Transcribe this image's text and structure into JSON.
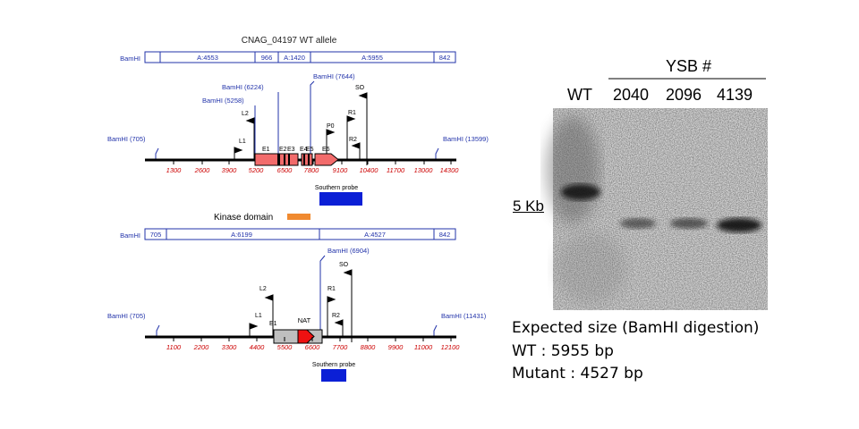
{
  "wt_map": {
    "title": "CNAG_04197 WT allele",
    "site_label": "BamHI",
    "segments": [
      "A:4553",
      "966",
      "A:1420",
      "A:5955",
      "842"
    ],
    "flank_left": "BamHI (705)",
    "flank_right": "BamHI (13599)",
    "site1": "BamHI (5258)",
    "site2": "BamHI (6224)",
    "site3": "BamHI (7644)",
    "primers": [
      "L1",
      "L2",
      "P0",
      "R1",
      "R2",
      "SO"
    ],
    "exons": [
      "E1",
      "E2",
      "E3",
      "E4",
      "E5",
      "E6"
    ],
    "scale": [
      "1300",
      "2600",
      "3900",
      "5200",
      "6500",
      "7800",
      "9100",
      "10400",
      "11700",
      "13000",
      "14300"
    ],
    "probe_label": "Southern probe"
  },
  "legend": {
    "kinase_label": "Kinase domain",
    "kinase_color": "#f08a30"
  },
  "mut_map": {
    "site_label": "BamHI",
    "segments": [
      "705",
      "A:6199",
      "A:4527",
      "842"
    ],
    "flank_left": "BamHI (705)",
    "flank_right": "BamHI (11431)",
    "site1": "BamHI (6904)",
    "primers": [
      "L1",
      "L2",
      "R1",
      "R2",
      "SO"
    ],
    "exon": "E1",
    "marker": "NAT",
    "scale": [
      "1100",
      "2200",
      "3300",
      "4400",
      "5500",
      "6600",
      "7700",
      "8800",
      "9900",
      "11000",
      "12100"
    ],
    "probe_label": "Southern probe"
  },
  "colors": {
    "gene": "#f26b6b",
    "marker": "#ee1111",
    "probe": "#0b1fd6",
    "scale": "#cc0000",
    "label": "#2233aa"
  },
  "blot": {
    "group_label": "YSB #",
    "lanes": [
      "WT",
      "2040",
      "2096",
      "4139"
    ],
    "size_marker": "5 Kb"
  },
  "info": {
    "title": "Expected size (BamHI digestion)",
    "wt": "WT : 5955 bp",
    "mutant": "Mutant : 4527 bp"
  }
}
